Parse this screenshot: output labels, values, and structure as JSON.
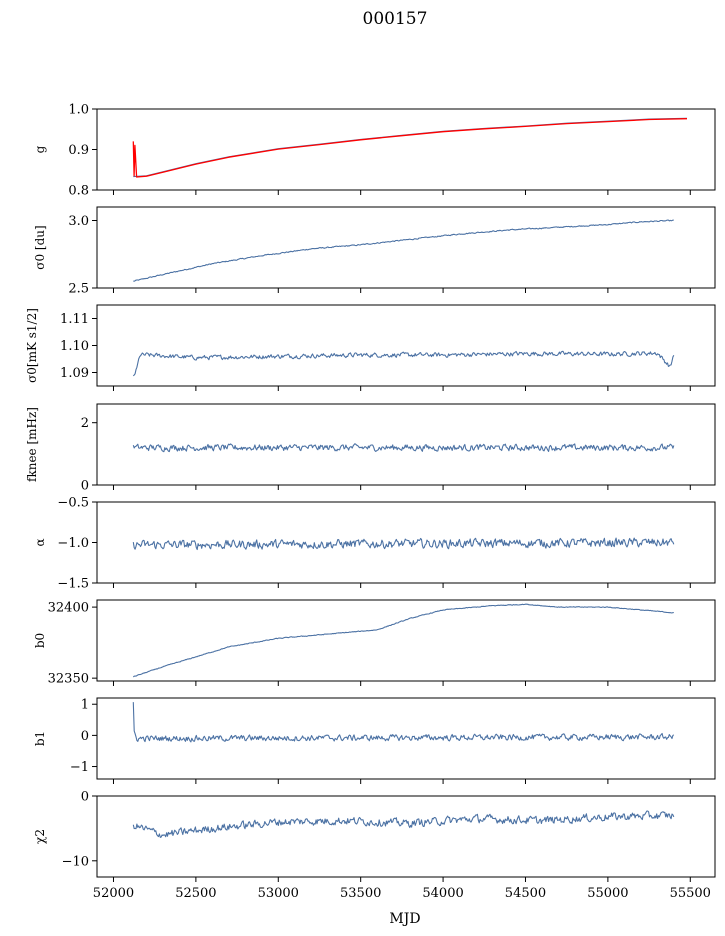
{
  "figure": {
    "title": "000157",
    "xlabel": "MJD",
    "xlim": [
      51900,
      55650
    ],
    "xticks": [
      52000,
      52500,
      53000,
      53500,
      54000,
      54500,
      55000,
      55500
    ],
    "grid": false
  },
  "colors": {
    "series": "#4c72a4",
    "fit": "#ff0000",
    "axes": "#000000"
  },
  "chart_data": [
    {
      "type": "line",
      "ylabel": "g",
      "ylim": [
        0.8,
        1.0
      ],
      "yticks": [
        "0.8",
        "0.9",
        "1.0"
      ],
      "ytick_values": [
        0.8,
        0.9,
        1.0
      ],
      "series": [
        {
          "color": "#4c72a4",
          "x": [
            52120,
            52200,
            52300,
            52500,
            52700,
            53000,
            53250,
            53500,
            53750,
            54000,
            54250,
            54500,
            54750,
            55000,
            55250,
            55480
          ],
          "y": [
            0.833,
            0.835,
            0.845,
            0.865,
            0.882,
            0.902,
            0.913,
            0.925,
            0.935,
            0.945,
            0.952,
            0.958,
            0.965,
            0.97,
            0.975,
            0.977
          ]
        },
        {
          "color": "#ff0000",
          "x": [
            52120,
            52125,
            52130,
            52140,
            52200,
            52300,
            52500,
            52700,
            53000,
            53250,
            53500,
            53750,
            54000,
            54250,
            54500,
            54750,
            55000,
            55250,
            55480
          ],
          "y": [
            0.92,
            0.835,
            0.91,
            0.832,
            0.834,
            0.844,
            0.864,
            0.881,
            0.901,
            0.912,
            0.924,
            0.934,
            0.944,
            0.951,
            0.957,
            0.964,
            0.969,
            0.974,
            0.976
          ]
        }
      ]
    },
    {
      "type": "line",
      "ylabel": "σ0 [du]",
      "ylim": [
        2.5,
        3.1
      ],
      "yticks": [
        "2.5",
        "3.0"
      ],
      "ytick_values": [
        2.5,
        3.0
      ],
      "series": [
        {
          "color": "#4c72a4",
          "x": [
            52120,
            52300,
            52600,
            52900,
            53200,
            53500,
            53800,
            54100,
            54400,
            54700,
            55000,
            55200,
            55400
          ],
          "y": [
            2.55,
            2.6,
            2.68,
            2.74,
            2.79,
            2.82,
            2.86,
            2.9,
            2.93,
            2.95,
            2.97,
            2.99,
            3.0
          ],
          "noise": 0.006
        }
      ]
    },
    {
      "type": "line",
      "ylabel": "σ0[mK s1/2]",
      "ylim": [
        1.085,
        1.115
      ],
      "yticks": [
        "1.09",
        "1.10",
        "1.11"
      ],
      "ytick_values": [
        1.09,
        1.1,
        1.11
      ],
      "series": [
        {
          "color": "#4c72a4",
          "x": [
            52120,
            52140,
            52160,
            52200,
            52500,
            53000,
            53500,
            54000,
            54500,
            55000,
            55300,
            55380,
            55400
          ],
          "y": [
            1.0885,
            1.091,
            1.0965,
            1.0965,
            1.0955,
            1.096,
            1.0965,
            1.0965,
            1.097,
            1.0968,
            1.0972,
            1.092,
            1.097
          ],
          "noise": 0.0012
        }
      ]
    },
    {
      "type": "line",
      "ylabel": "fknee [mHz]",
      "ylim": [
        0,
        2.6
      ],
      "yticks": [
        "0",
        "2"
      ],
      "ytick_values": [
        0,
        2
      ],
      "series": [
        {
          "color": "#4c72a4",
          "x": [
            52120,
            55400
          ],
          "y": [
            1.2,
            1.2
          ],
          "noise": 0.15
        }
      ]
    },
    {
      "type": "line",
      "ylabel": "α",
      "ylim": [
        -1.5,
        -0.5
      ],
      "yticks": [
        "−1.5",
        "−1.0",
        "−0.5"
      ],
      "ytick_values": [
        -1.5,
        -1.0,
        -0.5
      ],
      "series": [
        {
          "color": "#4c72a4",
          "x": [
            52120,
            55400
          ],
          "y": [
            -1.03,
            -1.0
          ],
          "noise": 0.08
        }
      ]
    },
    {
      "type": "line",
      "ylabel": "b0",
      "ylim": [
        32348,
        32405
      ],
      "yticks": [
        "32350",
        "32400"
      ],
      "ytick_values": [
        32350,
        32400
      ],
      "series": [
        {
          "color": "#4c72a4",
          "x": [
            52120,
            52300,
            52500,
            52700,
            53000,
            53300,
            53600,
            53800,
            54000,
            54300,
            54500,
            54700,
            55000,
            55200,
            55400
          ],
          "y": [
            32351,
            32358,
            32365,
            32372,
            32378,
            32381,
            32384,
            32392,
            32398,
            32401,
            32402,
            32400,
            32400,
            32398,
            32396
          ],
          "noise": 0.4
        }
      ]
    },
    {
      "type": "line",
      "ylabel": "b1",
      "ylim": [
        -1.4,
        1.2
      ],
      "yticks": [
        "−1",
        "0",
        "1"
      ],
      "ytick_values": [
        -1,
        0,
        1
      ],
      "series": [
        {
          "color": "#4c72a4",
          "x": [
            52120,
            52125,
            52140,
            55400
          ],
          "y": [
            1.0,
            0.1,
            -0.1,
            -0.05
          ],
          "noise": 0.14
        }
      ]
    },
    {
      "type": "line",
      "ylabel": "χ2",
      "ylim": [
        -12.5,
        0
      ],
      "yticks": [
        "−10",
        "0"
      ],
      "ytick_values": [
        -10,
        0
      ],
      "series": [
        {
          "color": "#4c72a4",
          "x": [
            52120,
            52300,
            52600,
            53000,
            53400,
            53800,
            54200,
            54600,
            55000,
            55400
          ],
          "y": [
            -4.5,
            -6.0,
            -5.0,
            -4.0,
            -3.8,
            -4.2,
            -3.5,
            -3.8,
            -3.2,
            -3.0
          ],
          "noise": 0.9
        }
      ]
    }
  ]
}
